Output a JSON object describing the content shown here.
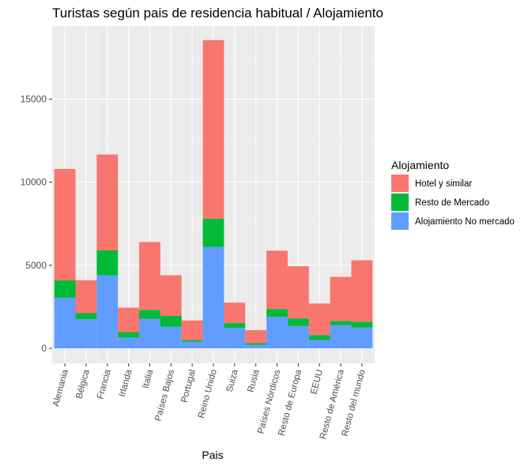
{
  "chart_data": {
    "type": "bar",
    "stacked": true,
    "title": "Turistas según pais de residencia habitual / Alojamiento",
    "xlabel": "Pais",
    "ylabel": "",
    "ylim": [
      -900,
      19400
    ],
    "yticks": [
      0,
      5000,
      10000,
      15000
    ],
    "grid": true,
    "legend_position": "right",
    "legend_title": "Alojamiento",
    "categories": [
      "Alemania",
      "Bélgica",
      "Francia",
      "Irlanda",
      "Italia",
      "Países Bajos",
      "Portugal",
      "Reino Unido",
      "Suiza",
      "Rusia",
      "Países Nórdicos",
      "Resto de Europa",
      "EEUU",
      "Resto de América",
      "Resto del mundo"
    ],
    "series": [
      {
        "name": "Alojamiento No mercado",
        "color": "#619CFF",
        "values": [
          3050,
          1750,
          4400,
          650,
          1780,
          1300,
          400,
          6100,
          1230,
          220,
          1900,
          1350,
          500,
          1400,
          1250
        ]
      },
      {
        "name": "Resto de Mercado",
        "color": "#00BA38",
        "values": [
          1050,
          370,
          1500,
          330,
          540,
          650,
          100,
          1700,
          290,
          100,
          470,
          450,
          300,
          250,
          350
        ]
      },
      {
        "name": "Hotel y similar",
        "color": "#F8766D",
        "values": [
          6700,
          1980,
          5770,
          1470,
          4080,
          2450,
          1180,
          10750,
          1230,
          780,
          3510,
          3150,
          1900,
          2650,
          3700
        ]
      }
    ],
    "legend_order": [
      "Hotel y similar",
      "Resto de Mercado",
      "Alojamiento No mercado"
    ]
  }
}
